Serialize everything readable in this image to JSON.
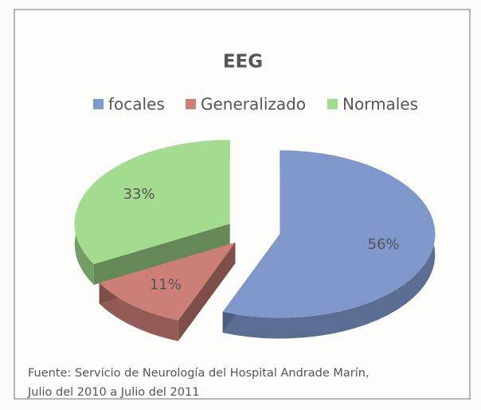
{
  "chart_data": {
    "type": "pie",
    "title": "EEG",
    "categories": [
      "focales",
      "Generalizado",
      "Normales"
    ],
    "values": [
      56,
      11,
      33
    ],
    "value_labels": [
      "56%",
      "11%",
      "33%"
    ],
    "colors": [
      "#8097cc",
      "#cc7f76",
      "#a3db8f"
    ],
    "legend": "top",
    "source": [
      "Fuente: Servicio de Neurología del Hospital Andrade Marín,",
      "Julio del 2010 a Julio del 2011"
    ]
  }
}
